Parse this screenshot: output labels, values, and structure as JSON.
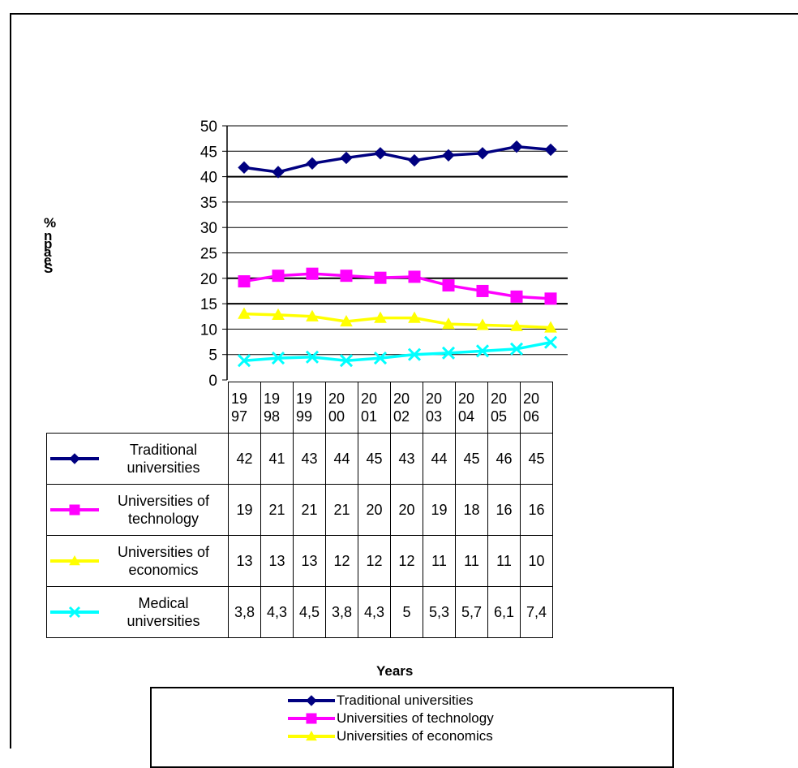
{
  "chart_data": {
    "type": "line",
    "xlabel": "Years",
    "ylabel": "% n p a e S",
    "ylim": [
      0,
      50
    ],
    "yticks": [
      "0",
      "5",
      "10",
      "15",
      "20",
      "25",
      "30",
      "35",
      "40",
      "45",
      "50"
    ],
    "categories": [
      "19\n97",
      "19\n98",
      "19\n99",
      "20\n00",
      "20\n01",
      "20\n02",
      "20\n03",
      "20\n04",
      "20\n05",
      "20\n06"
    ],
    "series": [
      {
        "name": "Traditional universities",
        "table_label": "Traditional\nuniversities",
        "color": "#000080",
        "marker": "diamond",
        "values": [
          41.8,
          40.9,
          42.6,
          43.7,
          44.6,
          43.2,
          44.2,
          44.6,
          45.9,
          45.3
        ],
        "table_values": [
          "42",
          "41",
          "43",
          "44",
          "45",
          "43",
          "44",
          "45",
          "46",
          "45"
        ]
      },
      {
        "name": "Universities of technology",
        "table_label": "Universities of\ntechnology",
        "color": "#FF00FF",
        "marker": "square",
        "values": [
          19.4,
          20.5,
          20.9,
          20.5,
          20.1,
          20.3,
          18.6,
          17.5,
          16.4,
          16.0
        ],
        "table_values": [
          "19",
          "21",
          "21",
          "21",
          "20",
          "20",
          "19",
          "18",
          "16",
          "16"
        ]
      },
      {
        "name": "Universities of economics",
        "table_label": "Universities of\neconomics",
        "color": "#FFFF00",
        "marker": "triangle",
        "values": [
          13.0,
          12.8,
          12.5,
          11.5,
          12.2,
          12.2,
          11.0,
          10.8,
          10.6,
          10.3
        ],
        "table_values": [
          "13",
          "13",
          "13",
          "12",
          "12",
          "12",
          "11",
          "11",
          "11",
          "10"
        ]
      },
      {
        "name": "Medical universities",
        "table_label": "Medical\nuniversities",
        "color": "#00FFFF",
        "marker": "x",
        "values": [
          3.8,
          4.3,
          4.5,
          3.8,
          4.3,
          5.0,
          5.3,
          5.7,
          6.1,
          7.4
        ],
        "table_values": [
          "3,8",
          "4,3",
          "4,5",
          "3,8",
          "4,3",
          "5",
          "5,3",
          "5,7",
          "6,1",
          "7,4"
        ]
      }
    ],
    "legend": [
      "Traditional universities",
      "Universities of technology",
      "Universities of economics"
    ],
    "legend_placement": "bottom",
    "grid": true
  }
}
